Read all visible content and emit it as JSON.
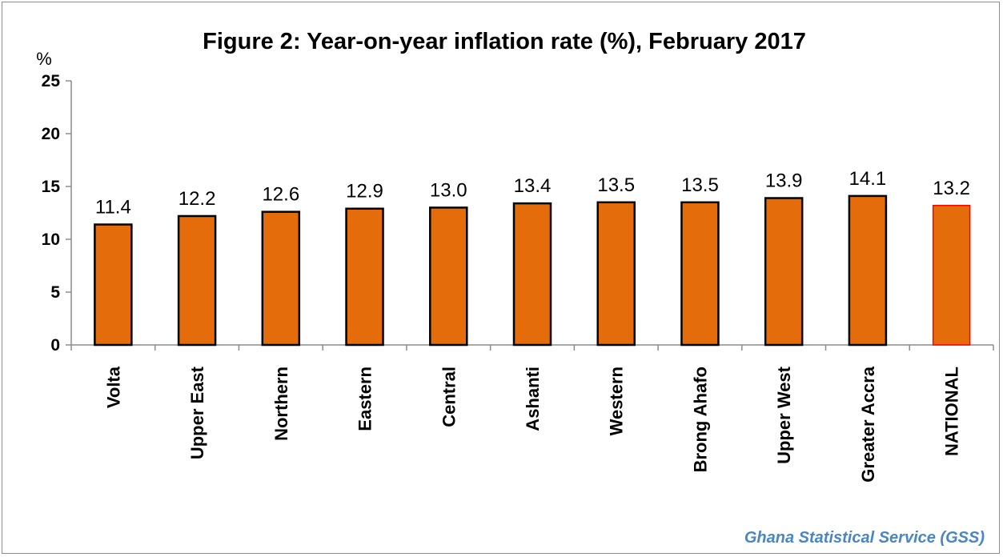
{
  "chart_data": {
    "type": "bar",
    "title": "Figure 2: Year-on-year inflation rate (%),  February 2017",
    "ylabel": "%",
    "ylim": [
      0,
      25
    ],
    "yticks": [
      0,
      5,
      10,
      15,
      20,
      25
    ],
    "categories": [
      "Volta",
      "Upper East",
      "Northern",
      "Eastern",
      "Central",
      "Ashanti",
      "Western",
      "Brong Ahafo",
      "Upper West",
      "Greater Accra",
      "NATIONAL"
    ],
    "values": [
      11.4,
      12.2,
      12.6,
      12.9,
      13.0,
      13.4,
      13.5,
      13.5,
      13.9,
      14.1,
      13.2
    ],
    "value_labels": [
      "11.4",
      "12.2",
      "12.6",
      "12.9",
      "13.0",
      "13.4",
      "13.5",
      "13.5",
      "13.9",
      "14.1",
      "13.2"
    ],
    "grid": false,
    "legend": "none",
    "colors": {
      "bar_fill": "#e46c0a",
      "bar_stroke": "#000000",
      "highlight_fill": "#e46c0a",
      "highlight_stroke": "#ff0000",
      "highlight_label": "#ff0000",
      "axis": "#8c8c8c"
    },
    "highlight_index": 10
  },
  "footer": {
    "source": "Ghana Statistical Service (GSS)"
  }
}
